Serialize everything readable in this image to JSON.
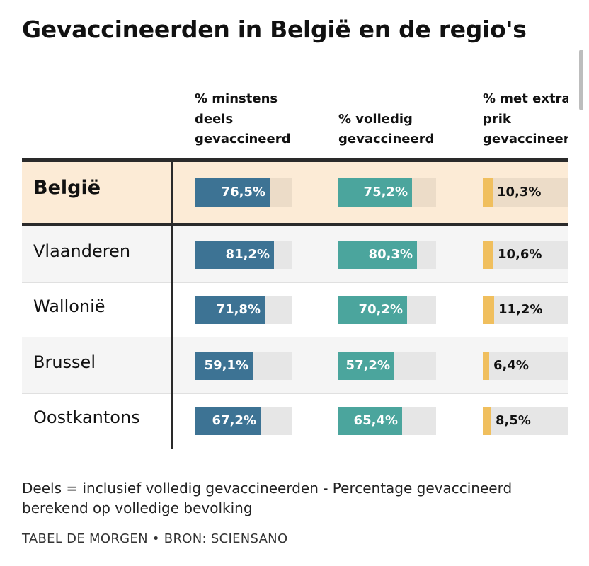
{
  "title": "Gevaccineerden in België en de regio's",
  "colors": {
    "col1": "#3d7394",
    "col2": "#4ba59d",
    "col3": "#f0bf5e",
    "track": "#e6e6e6",
    "track_belgie": "#ecdcc8",
    "row_belgie_bg": "#fcebd6",
    "row_alt_bg": "#f5f5f5"
  },
  "chart_data": {
    "type": "table",
    "columns": [
      "% minstens deels gevaccineerd",
      "% volledig gevaccineerd",
      "% met extra prik gevaccineerd"
    ],
    "header_lines": [
      [
        "% minstens",
        "deels",
        "gevaccineerd"
      ],
      [
        "% volledig",
        "gevaccineerd"
      ],
      [
        "% met extra",
        "prik",
        "gevaccineerd"
      ]
    ],
    "rows": [
      {
        "name": "België",
        "values": [
          76.5,
          75.2,
          10.3
        ],
        "labels": [
          "76,5%",
          "75,2%",
          "10,3%"
        ],
        "highlight": true
      },
      {
        "name": "Vlaanderen",
        "values": [
          81.2,
          80.3,
          10.6
        ],
        "labels": [
          "81,2%",
          "80,3%",
          "10,6%"
        ]
      },
      {
        "name": "Wallonië",
        "values": [
          71.8,
          70.2,
          11.2
        ],
        "labels": [
          "71,8%",
          "70,2%",
          "11,2%"
        ]
      },
      {
        "name": "Brussel",
        "values": [
          59.1,
          57.2,
          6.4
        ],
        "labels": [
          "59,1%",
          "57,2%",
          "6,4%"
        ]
      },
      {
        "name": "Oostkantons",
        "values": [
          67.2,
          65.4,
          8.5
        ],
        "labels": [
          "67,2%",
          "65,4%",
          "8,5%"
        ]
      }
    ],
    "scale_max": 100
  },
  "footnote": "Deels = inclusief volledig gevaccineerden - Percentage gevaccineerd berekend op volledige bevolking",
  "source": "TABEL DE MORGEN • BRON: SCIENSANO"
}
